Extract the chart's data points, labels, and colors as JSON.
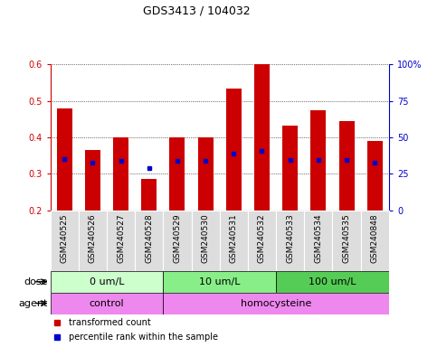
{
  "title": "GDS3413 / 104032",
  "samples": [
    "GSM240525",
    "GSM240526",
    "GSM240527",
    "GSM240528",
    "GSM240529",
    "GSM240530",
    "GSM240531",
    "GSM240532",
    "GSM240533",
    "GSM240534",
    "GSM240535",
    "GSM240848"
  ],
  "red_values": [
    0.48,
    0.365,
    0.4,
    0.285,
    0.4,
    0.4,
    0.535,
    0.605,
    0.432,
    0.475,
    0.445,
    0.39
  ],
  "blue_values": [
    0.34,
    0.33,
    0.335,
    0.315,
    0.335,
    0.335,
    0.355,
    0.362,
    0.338,
    0.338,
    0.337,
    0.33
  ],
  "ymin": 0.2,
  "ymax": 0.6,
  "yticks_left": [
    0.2,
    0.3,
    0.4,
    0.5,
    0.6
  ],
  "yticks_right_vals": [
    0,
    25,
    50,
    75,
    100
  ],
  "yticks_right_labels": [
    "0",
    "25",
    "50",
    "75",
    "100%"
  ],
  "red_color": "#cc0000",
  "blue_color": "#0000cc",
  "bar_width": 0.55,
  "dose_colors": [
    "#ccffcc",
    "#88ee88",
    "#55cc55"
  ],
  "dose_groups": [
    {
      "label": "0 um/L",
      "start": 0,
      "end": 4
    },
    {
      "label": "10 um/L",
      "start": 4,
      "end": 8
    },
    {
      "label": "100 um/L",
      "start": 8,
      "end": 12
    }
  ],
  "agent_color": "#ee88ee",
  "agent_groups": [
    {
      "label": "control",
      "start": 0,
      "end": 4
    },
    {
      "label": "homocysteine",
      "start": 4,
      "end": 12
    }
  ],
  "dose_label": "dose",
  "agent_label": "agent",
  "legend_red": "transformed count",
  "legend_blue": "percentile rank within the sample",
  "xlabels_bg": "#dddddd",
  "title_fontsize": 9,
  "tick_fontsize": 7,
  "row_fontsize": 8,
  "legend_fontsize": 7
}
